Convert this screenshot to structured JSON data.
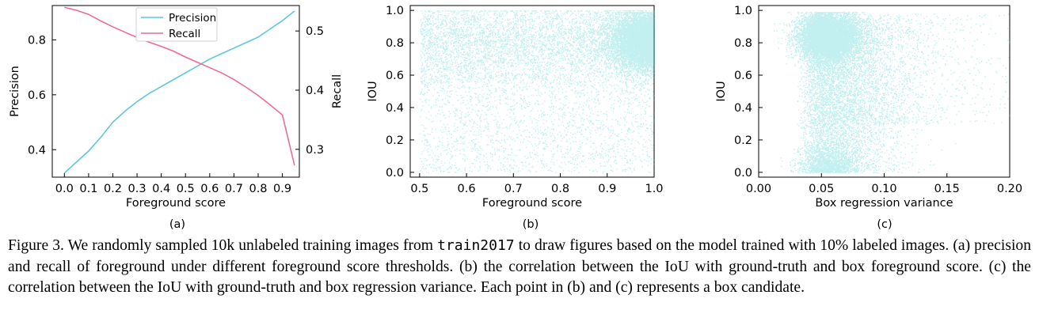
{
  "chart_data": [
    {
      "panel": "(a)",
      "type": "line",
      "xlabel": "Foreground score",
      "ylabel": "Precision",
      "y2label": "Recall",
      "xlim": [
        -0.05,
        0.97
      ],
      "ylim": [
        0.3,
        0.925
      ],
      "y2lim": [
        0.253,
        0.543
      ],
      "xticks": [
        0.0,
        0.1,
        0.2,
        0.3,
        0.4,
        0.5,
        0.6,
        0.7,
        0.8,
        0.9
      ],
      "yticks": [
        0.4,
        0.6,
        0.8
      ],
      "y2ticks": [
        0.3,
        0.4,
        0.5
      ],
      "legend": "top-center",
      "colors": {
        "Precision": "#5bc8dd",
        "Recall": "#ef6a98"
      },
      "x": [
        0.0,
        0.05,
        0.1,
        0.15,
        0.2,
        0.25,
        0.3,
        0.35,
        0.4,
        0.45,
        0.5,
        0.55,
        0.6,
        0.65,
        0.7,
        0.75,
        0.8,
        0.85,
        0.9,
        0.95
      ],
      "series": [
        {
          "name": "Precision",
          "axis": "left",
          "values": [
            0.315,
            0.355,
            0.395,
            0.445,
            0.5,
            0.54,
            0.575,
            0.605,
            0.63,
            0.655,
            0.68,
            0.705,
            0.73,
            0.75,
            0.77,
            0.79,
            0.81,
            0.84,
            0.87,
            0.905
          ]
        },
        {
          "name": "Recall",
          "axis": "right",
          "values": [
            0.54,
            0.535,
            0.528,
            0.517,
            0.507,
            0.498,
            0.489,
            0.481,
            0.474,
            0.466,
            0.456,
            0.447,
            0.438,
            0.429,
            0.418,
            0.405,
            0.391,
            0.375,
            0.358,
            0.273
          ]
        }
      ]
    },
    {
      "panel": "(b)",
      "type": "scatter",
      "xlabel": "Foreground score",
      "ylabel": "IOU",
      "xlim": [
        0.48,
        1.0
      ],
      "ylim": [
        -0.03,
        1.03
      ],
      "xticks": [
        0.5,
        0.6,
        0.7,
        0.8,
        0.9,
        1.0
      ],
      "yticks": [
        0.0,
        0.2,
        0.4,
        0.6,
        0.8,
        1.0
      ],
      "color": "#4fd0d0"
    },
    {
      "panel": "(c)",
      "type": "scatter",
      "xlabel": "Box regression variance",
      "ylabel": "IOU",
      "xlim": [
        0.0,
        0.2
      ],
      "ylim": [
        -0.03,
        1.03
      ],
      "xticks": [
        0.0,
        0.05,
        0.1,
        0.15,
        0.2
      ],
      "yticks": [
        0.0,
        0.2,
        0.4,
        0.6,
        0.8,
        1.0
      ],
      "color": "#4fd0d0"
    }
  ],
  "caption": {
    "part1": "Figure 3. We randomly sampled 10k unlabeled training images from ",
    "code": "train2017",
    "part2": " to draw figures based on the model trained with 10% labeled images. (a) precision and recall of foreground under different foreground score thresholds. (b) the correlation between the IoU with ground-truth and box foreground score. (c) the correlation between the IoU with ground-truth and box regression variance. Each point in (b) and (c) represents a box candidate."
  }
}
